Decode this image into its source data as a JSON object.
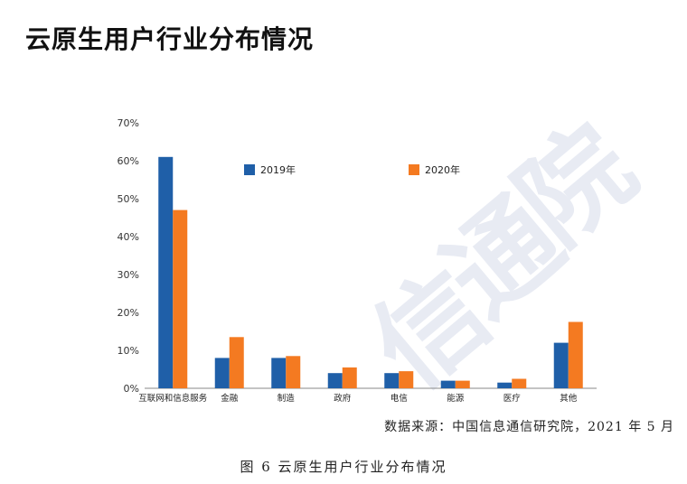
{
  "page": {
    "title": "云原生用户行业分布情况",
    "watermark": "信通院",
    "source": "数据来源：中国信息通信研究院，2021 年 5 月",
    "caption": "图 6  云原生用户行业分布情况"
  },
  "chart_data": {
    "type": "bar",
    "categories": [
      "互联网和信息服务",
      "金融",
      "制造",
      "政府",
      "电信",
      "能源",
      "医疗",
      "其他"
    ],
    "series": [
      {
        "name": "2019年",
        "values": [
          61,
          8,
          8,
          4,
          4,
          2,
          1.5,
          12
        ],
        "color": "#1f5fa8"
      },
      {
        "name": "2020年",
        "values": [
          47,
          13.5,
          8.5,
          5.5,
          4.5,
          2,
          2.5,
          17.5
        ],
        "color": "#f47a21"
      }
    ],
    "ylim": [
      0,
      70
    ],
    "yticks": [
      "0%",
      "10%",
      "20%",
      "30%",
      "40%",
      "50%",
      "60%",
      "70%"
    ],
    "grid": false,
    "legend_position": "top"
  }
}
